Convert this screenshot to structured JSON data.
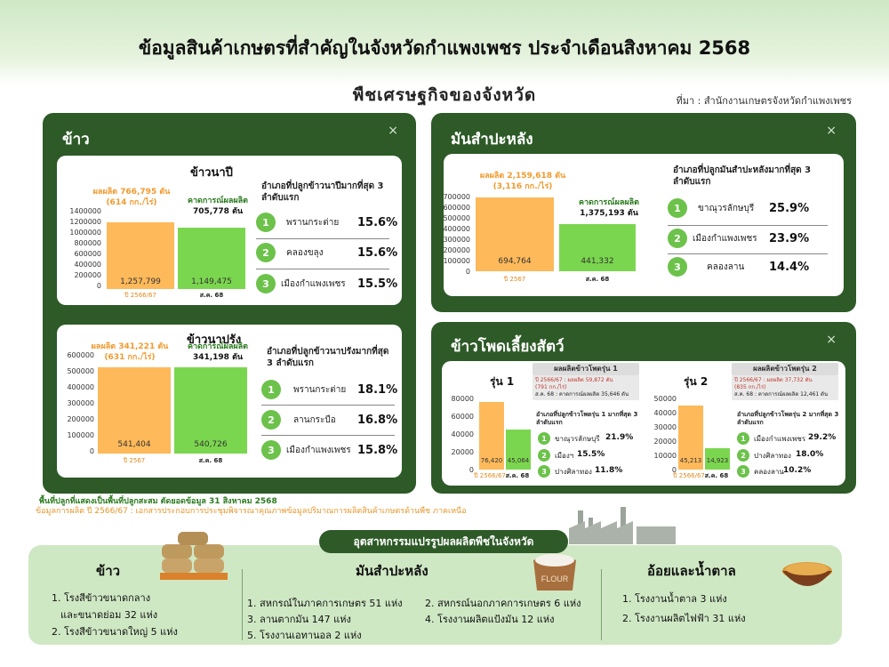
{
  "header": {
    "title": "ข้อมูลสินค้าเกษตรที่สำคัญในจังหวัดกำแพงเพชร ประจำเดือนสิงหาคม 2568",
    "subtitle": "พืชเศรษฐกิจของจังหวัด",
    "source": "ที่มา : สำนักงานเกษตรจังหวัดกำแพงเพชร"
  },
  "rice_panel": {
    "title": "ข้าว",
    "close": "×",
    "napi": {
      "title": "ข้าวนาปี",
      "prod_label": "ผลผลิต 766,795 ตัน",
      "prod_yield": "(614 กก./ไร่)",
      "forecast_label": "คาดการณ์ผลผลิต",
      "forecast_value": "705,778 ตัน",
      "y_ticks": [
        "1400000",
        "1200000",
        "1000000",
        "800000",
        "600000",
        "400000",
        "200000",
        "0"
      ],
      "bars": [
        {
          "label": "ปี 2566/67",
          "value": 1257799,
          "display": "1,257,799"
        },
        {
          "label": "ส.ค. 68",
          "value": 1149475,
          "display": "1,149,475"
        }
      ],
      "rank_head": "อำเภอที่ปลูกข้าวนาปีมากที่สุด 3 ลำดับแรก",
      "ranks": [
        {
          "n": "1",
          "name": "พรานกระต่าย",
          "pct": "15.6%"
        },
        {
          "n": "2",
          "name": "คลองขลุง",
          "pct": "15.6%"
        },
        {
          "n": "3",
          "name": "เมืองกำแพงเพชร",
          "pct": "15.5%"
        }
      ]
    },
    "naprang": {
      "title": "ข้าวนาปรัง",
      "prod_label": "ผลผลิต 341,221 ตัน",
      "prod_yield": "(631 กก./ไร่)",
      "forecast_label": "คาดการณ์ผลผลิต",
      "forecast_value": "341,198 ตัน",
      "y_ticks": [
        "600000",
        "500000",
        "400000",
        "300000",
        "200000",
        "100000",
        "0"
      ],
      "bars": [
        {
          "label": "ปี 2567",
          "value": 541404,
          "display": "541,404"
        },
        {
          "label": "ส.ค. 68",
          "value": 540726,
          "display": "540,726"
        }
      ],
      "rank_head": "อำเภอที่ปลูกข้าวนาปรังมากที่สุด 3 ลำดับแรก",
      "ranks": [
        {
          "n": "1",
          "name": "พรานกระต่าย",
          "pct": "18.1%"
        },
        {
          "n": "2",
          "name": "ลานกระบือ",
          "pct": "16.8%"
        },
        {
          "n": "3",
          "name": "เมืองกำแพงเพชร",
          "pct": "15.8%"
        }
      ]
    }
  },
  "cassava_panel": {
    "title": "มันสำปะหลัง",
    "close": "×",
    "prod_label": "ผลผลิต 2,159,618 ตัน",
    "prod_yield": "(3,116 กก./ไร่)",
    "forecast_label": "คาดการณ์ผลผลิต",
    "forecast_value": "1,375,193 ตัน",
    "y_ticks": [
      "700000",
      "600000",
      "500000",
      "400000",
      "300000",
      "200000",
      "100000",
      "0"
    ],
    "bars": [
      {
        "label": "ปี 2567",
        "value": 694764,
        "display": "694,764"
      },
      {
        "label": "ส.ค. 68",
        "value": 441332,
        "display": "441,332"
      }
    ],
    "rank_head": "อำเภอที่ปลูกมันสำปะหลังมากที่สุด 3 ลำดับแรก",
    "ranks": [
      {
        "n": "1",
        "name": "ขาณุวรลักษบุรี",
        "pct": "25.9%"
      },
      {
        "n": "2",
        "name": "เมืองกำแพงเพชร",
        "pct": "23.9%"
      },
      {
        "n": "3",
        "name": "คลองลาน",
        "pct": "14.4%"
      }
    ]
  },
  "corn_panel": {
    "title": "ข้าวโพดเลี้ยงสัตว์",
    "close": "×",
    "r1": {
      "title": "รุ่น 1",
      "head": "ผลผลิตข้าวโพดรุ่น 1",
      "line1_a": "ปี 2566/67 :",
      "line1_b": "ผลผลิต 59,872 ตัน",
      "line2": "(791 กก./ไร่)",
      "line3_a": "ส.ค. 68 :",
      "line3_b": "คาดการณ์ผลผลิต 35,646 ตัน",
      "y_ticks": [
        "80000",
        "60000",
        "40000",
        "20000",
        "0"
      ],
      "bars": [
        {
          "label": "ปี 2566/67",
          "value": 76420,
          "display": "76,420"
        },
        {
          "label": "ส.ค. 68",
          "value": 45064,
          "display": "45,064"
        }
      ],
      "rank_head": "อำเภอที่ปลูกข้าวโพดรุ่น 1 มากที่สุด 3 ลำดับแรก",
      "ranks": [
        {
          "n": "1",
          "name": "ขาณุวรลักษบุรี",
          "pct": "21.9%"
        },
        {
          "n": "2",
          "name": "เมืองฯ",
          "pct": "15.5%"
        },
        {
          "n": "3",
          "name": "ปางศิลาทอง",
          "pct": "11.8%"
        }
      ]
    },
    "r2": {
      "title": "รุ่น 2",
      "head": "ผลผลิตข้าวโพดรุ่น 2",
      "line1_a": "ปี 2566/67 :",
      "line1_b": "ผลผลิต 37,732 ตัน",
      "line2": "(835 กก./ไร่)",
      "line3_a": "ส.ค. 68 :",
      "line3_b": "คาดการณ์ผลผลิต 12,461 ตัน",
      "y_ticks": [
        "50000",
        "40000",
        "30000",
        "20000",
        "10000",
        "0"
      ],
      "bars": [
        {
          "label": "ปี 2566/67",
          "value": 45213,
          "display": "45,213"
        },
        {
          "label": "ส.ค. 68",
          "value": 14923,
          "display": "14,923"
        }
      ],
      "rank_head": "อำเภอที่ปลูกข้าวโพดรุ่น 2 มากที่สุด 3 ลำดับแรก",
      "ranks": [
        {
          "n": "1",
          "name": "เมืองกำแพงเพชร",
          "pct": "29.2%"
        },
        {
          "n": "2",
          "name": "ปางศิลาทอง",
          "pct": "18.0%"
        },
        {
          "n": "3",
          "name": "คลองลาน",
          "pct": "10.2%"
        }
      ]
    }
  },
  "footnotes": {
    "line1": "พื้นที่ปลูกที่แสดงเป็นพื้นที่ปลูกสะสม ตัดยอดข้อมูล 31 สิงหาคม 2568",
    "line2": "ข้อมูลการผลิต ปี 2566/67 : เอกสารประกอบการประชุมพิจารณาคุณภาพข้อมูลปริมาณการผลิตสินค้าเกษตรด้านพืช ภาคเหนือ"
  },
  "industry": {
    "pill": "อุตสาหกรรมแปรรูปผลผลิตพืชในจังหวัด",
    "rice": {
      "head": "ข้าว",
      "items": [
        "1. โรงสีข้าวขนาดกลาง",
        "และขนาดย่อม 32 แห่ง",
        "2. โรงสีข้าวขนาดใหญ่ 5 แห่ง"
      ]
    },
    "cassava": {
      "head": "มันสำปะหลัง",
      "items": [
        "1. สหกรณ์ในภาคการเกษตร 51 แห่ง",
        "2. สหกรณ์นอกภาคการเกษตร 6 แห่ง",
        "3. ลานตากมัน 147 แห่ง",
        "4. โรงงานผลิตแป้งมัน 12 แห่ง",
        "5. โรงงานเอทานอล 2 แห่ง"
      ],
      "flour_text": "FLOUR"
    },
    "sugar": {
      "head": "อ้อยและน้ำตาล",
      "items": [
        "1. โรงงานน้ำตาล 3 แห่ง",
        "2. โรงงานผลิตไฟฟ้า 31 แห่ง"
      ]
    }
  },
  "colors": {
    "panel": "#2d5a27",
    "bar_prev": "#fdb95a",
    "bar_curr": "#7bd64f",
    "rank_badge": "#6cc24a",
    "bottom_bg": "#cfe8c4"
  }
}
